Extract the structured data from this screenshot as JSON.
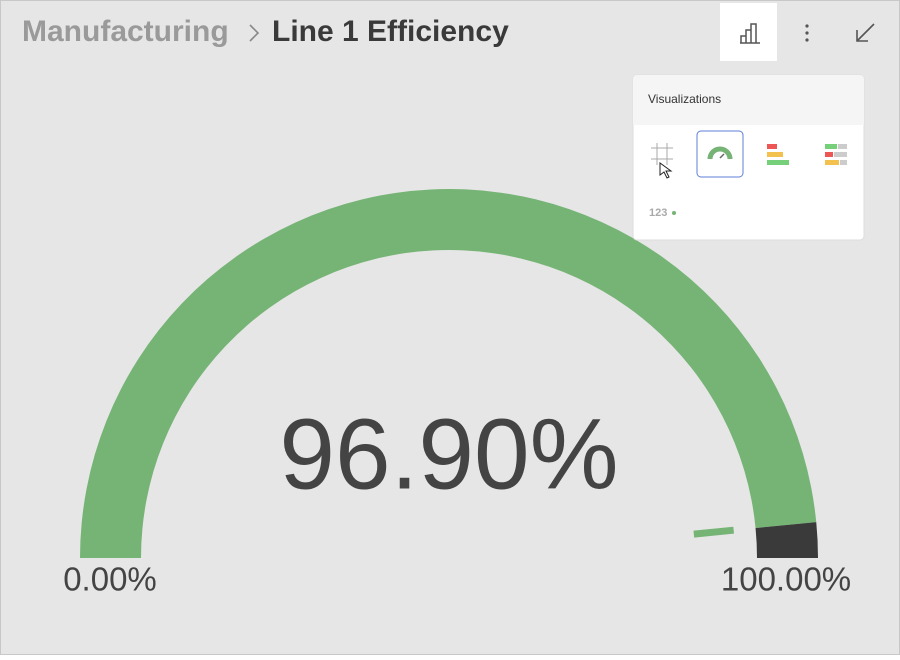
{
  "header": {
    "breadcrumb": "Manufacturing",
    "title": "Line 1 Efficiency"
  },
  "menu": {
    "title": "Visualizations",
    "number_icon": "123"
  },
  "chart_data": {
    "type": "gauge",
    "values": [
      96.9
    ],
    "value_labels": [
      "96.90%"
    ],
    "ylim": [
      0,
      100
    ],
    "yticks": [
      {
        "value": 0,
        "label": "0.00%"
      },
      {
        "value": 100,
        "label": "100.00%"
      }
    ],
    "color": "#76b476",
    "track_color": "#3a3a3a"
  }
}
